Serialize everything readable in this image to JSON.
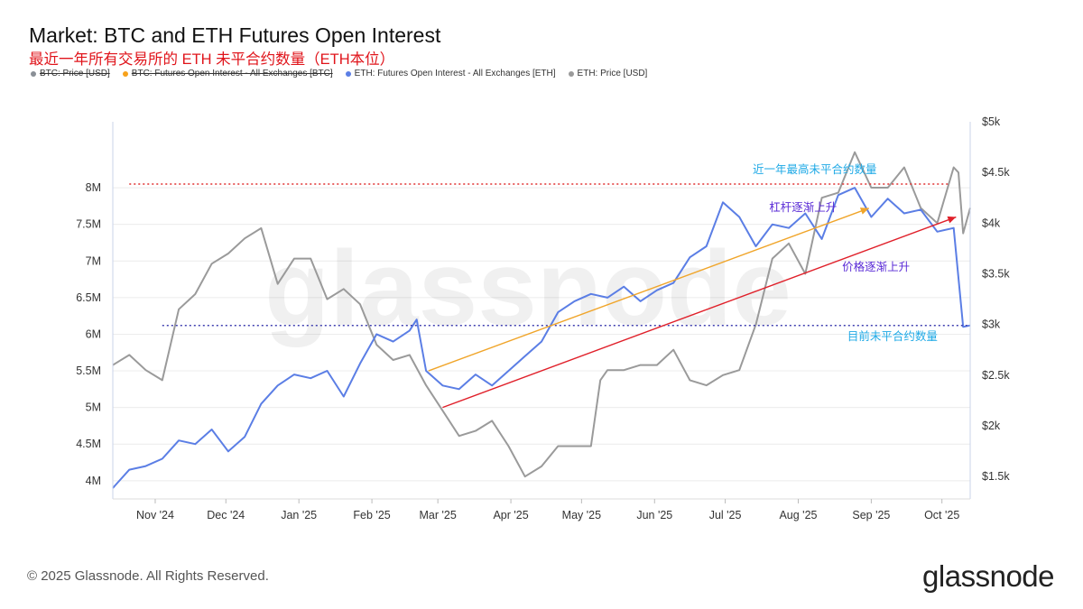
{
  "header": {
    "title": "Market: BTC and ETH Futures Open Interest",
    "subtitle": "最近一年所有交易所的 ETH 未平合约数量（ETH本位）"
  },
  "legend": [
    {
      "label": "BTC: Price [USD]",
      "color": "#8a8f96",
      "struck": true
    },
    {
      "label": "BTC: Futures Open Interest - All Exchanges [BTC]",
      "color": "#f7a21b",
      "struck": true
    },
    {
      "label": "ETH: Futures Open Interest - All Exchanges [ETH]",
      "color": "#5b7ee5",
      "struck": false
    },
    {
      "label": "ETH: Price [USD]",
      "color": "#9a9a9a",
      "struck": false
    }
  ],
  "watermark": "glassnode",
  "footer": {
    "copyright": "© 2025 Glassnode. All Rights Reserved.",
    "logo": "glassnode"
  },
  "chart_data": {
    "type": "line",
    "x_tick_labels": [
      "Nov '24",
      "Dec '24",
      "Jan '25",
      "Feb '25",
      "Mar '25",
      "Apr '25",
      "May '25",
      "Jun '25",
      "Jul '25",
      "Aug '25",
      "Sep '25",
      "Oct '25"
    ],
    "x_range": [
      "2024-10-14",
      "2025-10-13"
    ],
    "y_left": {
      "range": [
        3850000,
        8900000
      ],
      "ticks": [
        4000000,
        4500000,
        5000000,
        5500000,
        6000000,
        6500000,
        7000000,
        7500000,
        8000000
      ],
      "tick_labels": [
        "4M",
        "4.5M",
        "5M",
        "5.5M",
        "6M",
        "6.5M",
        "7M",
        "7.5M",
        "8M"
      ]
    },
    "y_right": {
      "range": [
        1350,
        5000
      ],
      "ticks": [
        1500,
        2000,
        2500,
        3000,
        3500,
        4000,
        4500,
        5000
      ],
      "tick_labels": [
        "$1.5k",
        "$2k",
        "$2.5k",
        "$3k",
        "$3.5k",
        "$4k",
        "$4.5k",
        "$5k"
      ]
    },
    "grid": "horizontal",
    "series": [
      {
        "name": "ETH: Futures Open Interest - All Exchanges [ETH]",
        "axis": "left",
        "color": "#5b7ee5",
        "points": [
          [
            "2024-10-14",
            3900000
          ],
          [
            "2024-10-21",
            4150000
          ],
          [
            "2024-10-28",
            4200000
          ],
          [
            "2024-11-04",
            4300000
          ],
          [
            "2024-11-11",
            4550000
          ],
          [
            "2024-11-18",
            4500000
          ],
          [
            "2024-11-25",
            4700000
          ],
          [
            "2024-12-02",
            4400000
          ],
          [
            "2024-12-09",
            4600000
          ],
          [
            "2024-12-16",
            5050000
          ],
          [
            "2024-12-23",
            5300000
          ],
          [
            "2024-12-30",
            5450000
          ],
          [
            "2025-01-06",
            5400000
          ],
          [
            "2025-01-13",
            5500000
          ],
          [
            "2025-01-20",
            5150000
          ],
          [
            "2025-01-27",
            5600000
          ],
          [
            "2025-02-03",
            6000000
          ],
          [
            "2025-02-10",
            5900000
          ],
          [
            "2025-02-17",
            6050000
          ],
          [
            "2025-02-20",
            6200000
          ],
          [
            "2025-02-24",
            5500000
          ],
          [
            "2025-03-03",
            5300000
          ],
          [
            "2025-03-10",
            5250000
          ],
          [
            "2025-03-17",
            5450000
          ],
          [
            "2025-03-24",
            5300000
          ],
          [
            "2025-03-31",
            5500000
          ],
          [
            "2025-04-07",
            5700000
          ],
          [
            "2025-04-14",
            5900000
          ],
          [
            "2025-04-21",
            6300000
          ],
          [
            "2025-04-28",
            6450000
          ],
          [
            "2025-05-05",
            6550000
          ],
          [
            "2025-05-12",
            6500000
          ],
          [
            "2025-05-19",
            6650000
          ],
          [
            "2025-05-26",
            6450000
          ],
          [
            "2025-06-02",
            6600000
          ],
          [
            "2025-06-09",
            6700000
          ],
          [
            "2025-06-16",
            7050000
          ],
          [
            "2025-06-23",
            7200000
          ],
          [
            "2025-06-30",
            7800000
          ],
          [
            "2025-07-07",
            7600000
          ],
          [
            "2025-07-14",
            7200000
          ],
          [
            "2025-07-21",
            7500000
          ],
          [
            "2025-07-28",
            7450000
          ],
          [
            "2025-08-04",
            7650000
          ],
          [
            "2025-08-11",
            7300000
          ],
          [
            "2025-08-18",
            7900000
          ],
          [
            "2025-08-25",
            8000000
          ],
          [
            "2025-09-01",
            7600000
          ],
          [
            "2025-09-08",
            7850000
          ],
          [
            "2025-09-15",
            7650000
          ],
          [
            "2025-09-22",
            7700000
          ],
          [
            "2025-09-29",
            7400000
          ],
          [
            "2025-10-06",
            7450000
          ],
          [
            "2025-10-10",
            6100000
          ],
          [
            "2025-10-13",
            6120000
          ]
        ]
      },
      {
        "name": "ETH: Price [USD]",
        "axis": "right",
        "color": "#9a9a9a",
        "points": [
          [
            "2024-10-14",
            2600
          ],
          [
            "2024-10-21",
            2700
          ],
          [
            "2024-10-28",
            2550
          ],
          [
            "2024-11-04",
            2450
          ],
          [
            "2024-11-11",
            3150
          ],
          [
            "2024-11-18",
            3300
          ],
          [
            "2024-11-25",
            3600
          ],
          [
            "2024-12-02",
            3700
          ],
          [
            "2024-12-09",
            3850
          ],
          [
            "2024-12-16",
            3950
          ],
          [
            "2024-12-23",
            3400
          ],
          [
            "2024-12-30",
            3650
          ],
          [
            "2025-01-06",
            3650
          ],
          [
            "2025-01-13",
            3250
          ],
          [
            "2025-01-20",
            3350
          ],
          [
            "2025-01-27",
            3200
          ],
          [
            "2025-02-03",
            2800
          ],
          [
            "2025-02-10",
            2650
          ],
          [
            "2025-02-17",
            2700
          ],
          [
            "2025-02-24",
            2400
          ],
          [
            "2025-03-03",
            2150
          ],
          [
            "2025-03-10",
            1900
          ],
          [
            "2025-03-17",
            1950
          ],
          [
            "2025-03-24",
            2050
          ],
          [
            "2025-03-31",
            1800
          ],
          [
            "2025-04-07",
            1500
          ],
          [
            "2025-04-14",
            1600
          ],
          [
            "2025-04-21",
            1800
          ],
          [
            "2025-04-28",
            1800
          ],
          [
            "2025-05-05",
            1800
          ],
          [
            "2025-05-09",
            2450
          ],
          [
            "2025-05-12",
            2550
          ],
          [
            "2025-05-19",
            2550
          ],
          [
            "2025-05-26",
            2600
          ],
          [
            "2025-06-02",
            2600
          ],
          [
            "2025-06-09",
            2750
          ],
          [
            "2025-06-16",
            2450
          ],
          [
            "2025-06-23",
            2400
          ],
          [
            "2025-06-30",
            2500
          ],
          [
            "2025-07-07",
            2550
          ],
          [
            "2025-07-14",
            3000
          ],
          [
            "2025-07-21",
            3650
          ],
          [
            "2025-07-28",
            3800
          ],
          [
            "2025-08-04",
            3500
          ],
          [
            "2025-08-11",
            4250
          ],
          [
            "2025-08-18",
            4300
          ],
          [
            "2025-08-25",
            4700
          ],
          [
            "2025-09-01",
            4350
          ],
          [
            "2025-09-08",
            4350
          ],
          [
            "2025-09-15",
            4550
          ],
          [
            "2025-09-22",
            4150
          ],
          [
            "2025-09-29",
            4000
          ],
          [
            "2025-10-06",
            4550
          ],
          [
            "2025-10-08",
            4500
          ],
          [
            "2025-10-10",
            3900
          ],
          [
            "2025-10-13",
            4150
          ]
        ]
      }
    ],
    "annotations": [
      {
        "kind": "hline",
        "axis": "left",
        "y": 8050000,
        "x_from": "2024-10-21",
        "x_to": "2025-10-04",
        "color": "#e03030",
        "style": "dotted"
      },
      {
        "kind": "hline",
        "axis": "left",
        "y": 6120000,
        "x_from": "2024-11-04",
        "x_to": "2025-10-13",
        "color": "#4040b0",
        "style": "dotted"
      },
      {
        "kind": "arrow",
        "axis": "left",
        "from": [
          "2025-02-25",
          5500000
        ],
        "to": [
          "2025-08-31",
          7720000
        ],
        "color": "#f0a52a"
      },
      {
        "kind": "arrow",
        "axis": "left",
        "from": [
          "2025-03-03",
          5000000
        ],
        "to": [
          "2025-10-07",
          7600000
        ],
        "color": "#e0202a"
      },
      {
        "kind": "label",
        "text": "近一年最高未平合约数量",
        "x": "2025-08-08",
        "axis": "left",
        "y": 8200000,
        "color": "#1ea9e6",
        "anchor": "middle"
      },
      {
        "kind": "label",
        "text": "杠杆逐渐上升",
        "x": "2025-08-03",
        "axis": "left",
        "y": 7680000,
        "color": "#5a2bd6",
        "anchor": "middle"
      },
      {
        "kind": "label",
        "text": "价格逐渐上升",
        "x": "2025-09-03",
        "axis": "left",
        "y": 6870000,
        "color": "#5a2bd6",
        "anchor": "middle"
      },
      {
        "kind": "label",
        "text": "目前未平合约数量",
        "x": "2025-09-10",
        "axis": "left",
        "y": 5920000,
        "color": "#1ea9e6",
        "anchor": "middle"
      }
    ]
  }
}
